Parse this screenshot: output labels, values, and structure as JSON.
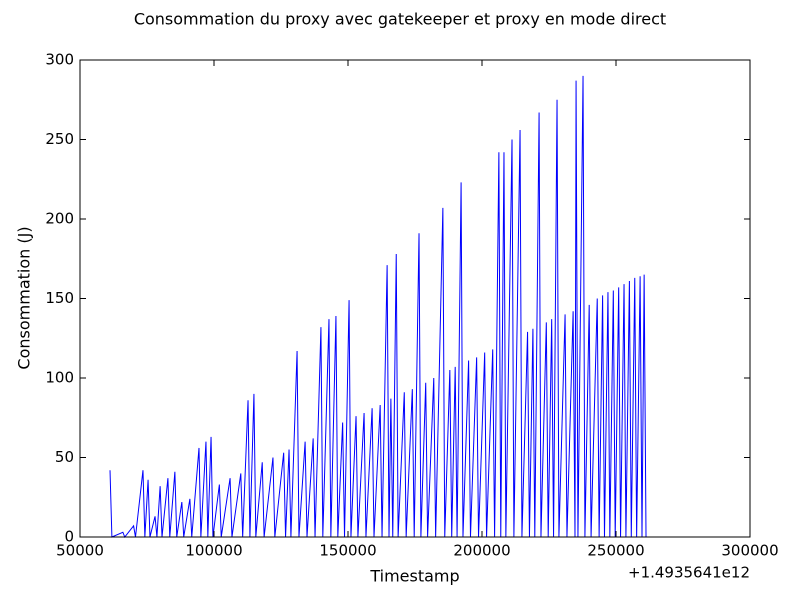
{
  "chart_data": {
    "type": "line",
    "title": "Consommation du proxy avec gatekeeper et proxy en mode direct",
    "x_label": "Timestamp",
    "y_label": "Consommation (J)",
    "x_offset": "+1.4935641e12",
    "x": [
      61200,
      61900,
      66000,
      66700,
      70000,
      70700,
      73500,
      74200,
      75400,
      76100,
      78000,
      78700,
      79900,
      80600,
      82800,
      83500,
      85400,
      86100,
      88000,
      88700,
      91000,
      91700,
      94400,
      95100,
      97000,
      97700,
      98900,
      99600,
      102000,
      102700,
      106000,
      106700,
      110000,
      110700,
      112700,
      113400,
      114900,
      115600,
      118000,
      118700,
      122000,
      122700,
      126000,
      126700,
      128000,
      128700,
      131000,
      131700,
      134000,
      134700,
      137000,
      137700,
      139900,
      140600,
      142900,
      143600,
      145500,
      146200,
      148000,
      148700,
      150400,
      151100,
      153000,
      153700,
      156000,
      156700,
      159000,
      159700,
      162000,
      162700,
      164600,
      165300,
      166000,
      166700,
      168000,
      168700,
      171000,
      171700,
      174000,
      174700,
      176500,
      177200,
      179000,
      179700,
      182000,
      182700,
      185400,
      186100,
      188000,
      188700,
      190000,
      190700,
      192200,
      192900,
      195000,
      195700,
      198000,
      198700,
      201000,
      201700,
      204000,
      204700,
      206300,
      207000,
      208200,
      208900,
      211200,
      211900,
      214200,
      214900,
      217000,
      217700,
      219000,
      219700,
      221300,
      222000,
      224000,
      224700,
      226000,
      226700,
      228000,
      228700,
      231000,
      231700,
      234000,
      234700,
      235100,
      235800,
      237700,
      238400,
      240000,
      240700,
      243000,
      243700,
      245000,
      245700,
      247000,
      247700,
      249000,
      249700,
      251000,
      251700,
      253000,
      253700,
      255000,
      255700,
      257000,
      257700,
      259000,
      259700,
      260500,
      261200
    ],
    "series": [
      {
        "color": "#0000ff",
        "values": [
          42,
          0,
          3,
          0,
          7,
          0,
          42,
          0,
          36,
          0,
          13,
          0,
          32,
          0,
          37,
          0,
          41,
          0,
          22,
          0,
          24,
          0,
          56,
          0,
          60,
          0,
          63,
          0,
          33,
          0,
          37,
          0,
          40,
          0,
          86,
          0,
          90,
          0,
          47,
          0,
          50,
          0,
          53,
          0,
          55,
          0,
          117,
          0,
          60,
          0,
          62,
          0,
          132,
          0,
          137,
          0,
          139,
          0,
          72,
          0,
          149,
          0,
          76,
          0,
          78,
          0,
          81,
          0,
          83,
          0,
          171,
          0,
          87,
          0,
          178,
          0,
          91,
          0,
          93,
          0,
          191,
          0,
          97,
          0,
          100,
          0,
          207,
          0,
          105,
          0,
          107,
          0,
          223,
          0,
          111,
          0,
          113,
          0,
          116,
          0,
          118,
          0,
          242,
          0,
          242,
          0,
          250,
          0,
          256,
          0,
          129,
          0,
          131,
          0,
          267,
          0,
          135,
          0,
          137,
          0,
          275,
          0,
          140,
          0,
          142,
          0,
          287,
          0,
          290,
          0,
          146,
          0,
          150,
          0,
          152,
          0,
          154,
          0,
          155,
          0,
          157,
          0,
          159,
          0,
          161,
          0,
          163,
          0,
          164,
          0,
          165,
          0
        ]
      }
    ],
    "xlim": [
      50000,
      300000
    ],
    "xticks": [
      50000,
      100000,
      150000,
      200000,
      250000,
      300000
    ],
    "ylim": [
      0,
      300
    ],
    "yticks": [
      0,
      50,
      100,
      150,
      200,
      250,
      300
    ]
  }
}
